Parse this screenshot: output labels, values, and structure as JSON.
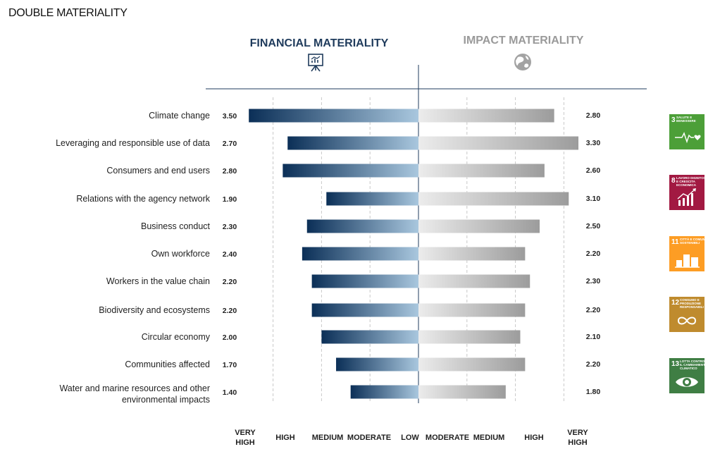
{
  "page_title": "DOUBLE MATERIALITY",
  "chart_data": {
    "type": "bar",
    "subtype": "diverging-horizontal",
    "left_header": "FINANCIAL MATERIALITY",
    "right_header": "IMPACT MATERIALITY",
    "categories": [
      [
        "Climate change"
      ],
      [
        "Leveraging and responsible use of data"
      ],
      [
        "Consumers and end users"
      ],
      [
        "Relations with the agency network"
      ],
      [
        "Business conduct"
      ],
      [
        "Own workforce"
      ],
      [
        "Workers in the value chain"
      ],
      [
        "Biodiversity and ecosystems"
      ],
      [
        "Circular economy"
      ],
      [
        "Communities affected"
      ],
      [
        "Water and marine resources and other",
        "environmental impacts"
      ]
    ],
    "financial_labels": [
      "3.50",
      "2.70",
      "2.80",
      "1.90",
      "2.30",
      "2.40",
      "2.20",
      "2.20",
      "2.00",
      "1.70",
      "1.40"
    ],
    "impact_labels": [
      "2.80",
      "3.30",
      "2.60",
      "3.10",
      "2.50",
      "2.20",
      "2.30",
      "2.20",
      "2.10",
      "2.20",
      "1.80"
    ],
    "series": [
      {
        "values": [
          3.5,
          2.7,
          2.8,
          1.9,
          2.3,
          2.4,
          2.2,
          2.2,
          2.0,
          1.7,
          1.4
        ]
      },
      {
        "values": [
          2.8,
          3.3,
          2.6,
          3.1,
          2.5,
          2.2,
          2.3,
          2.2,
          2.1,
          2.2,
          1.8
        ]
      }
    ],
    "xlim": [
      0,
      3.5
    ],
    "left_scale_labels": [
      [
        "VERY",
        "HIGH"
      ],
      [
        "HIGH"
      ],
      [
        "MEDIUM"
      ],
      [
        "MODERATE"
      ],
      [
        "LOW"
      ]
    ],
    "right_scale_labels": [
      [
        "MODERATE"
      ],
      [
        "MEDIUM"
      ],
      [
        "HIGH"
      ],
      [
        "VERY",
        "HIGH"
      ]
    ],
    "grid": true,
    "colors": {
      "financial_dark": "#0b2f57",
      "financial_light": "#a9c7de",
      "impact_dark": "#9c9c9c",
      "impact_light": "#ececec",
      "header_financial": "#1f3b5c",
      "header_impact": "#9a9a9a"
    }
  },
  "sdg_badges": [
    {
      "number": "3",
      "lines": [
        "SALUTE E",
        "BENESSERE"
      ],
      "icon": "heartbeat-icon",
      "color": "#4c9f38"
    },
    {
      "number": "8",
      "lines": [
        "LAVORO DIGNITOSO",
        "E CRESCITA",
        "ECONOMICA"
      ],
      "icon": "growth-chart-icon",
      "color": "#a21942"
    },
    {
      "number": "11",
      "lines": [
        "CITTÀ E COMUNITÀ",
        "SOSTENIBILI"
      ],
      "icon": "city-icon",
      "color": "#fd9d24"
    },
    {
      "number": "12",
      "lines": [
        "CONSUMO E",
        "PRODUZIONE",
        "RESPONSABILI"
      ],
      "icon": "infinity-icon",
      "color": "#bf8b2e"
    },
    {
      "number": "13",
      "lines": [
        "LOTTA CONTRO",
        "IL CAMBIAMENTO",
        "CLIMATICO"
      ],
      "icon": "eye-globe-icon",
      "color": "#3f7e44"
    }
  ]
}
